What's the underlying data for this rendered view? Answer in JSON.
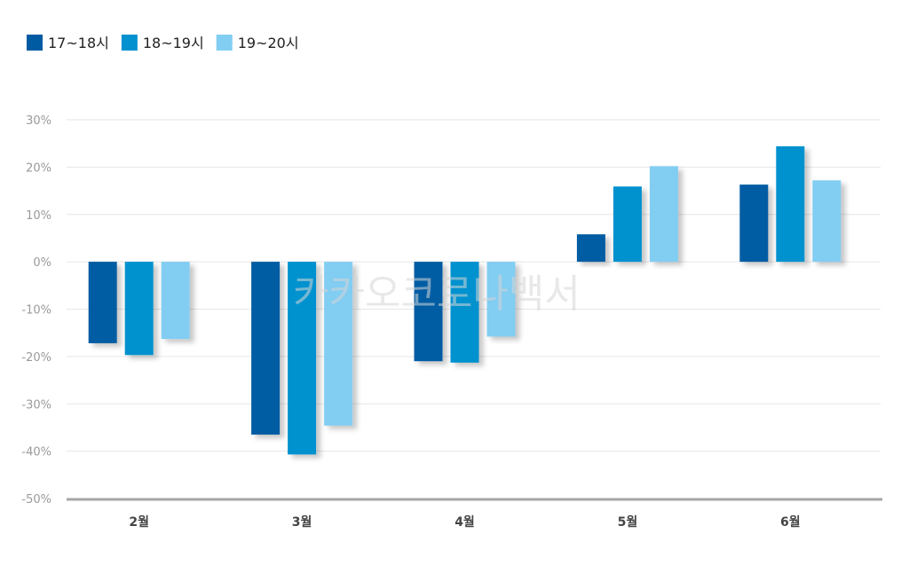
{
  "chart_data": {
    "type": "bar",
    "title": "",
    "xlabel": "",
    "ylabel": "",
    "categories": [
      "2월",
      "3월",
      "4월",
      "5월",
      "6월"
    ],
    "series": [
      {
        "name": "17~18시",
        "color": "#005ba3",
        "values": [
          -17.2,
          -36.5,
          -21.0,
          5.8,
          16.3
        ]
      },
      {
        "name": "18~19시",
        "color": "#0391cf",
        "values": [
          -19.7,
          -40.7,
          -21.3,
          15.9,
          24.4
        ]
      },
      {
        "name": "19~20시",
        "color": "#82cdf2",
        "values": [
          -16.3,
          -34.6,
          -15.8,
          20.2,
          17.2
        ]
      }
    ],
    "ylim": [
      -50,
      30
    ],
    "yticks": [
      30,
      20,
      10,
      0,
      -10,
      -20,
      -30,
      -40,
      -50
    ],
    "ytick_labels": [
      "30%",
      "20%",
      "10%",
      "0%",
      "-10%",
      "-20%",
      "-30%",
      "-40%",
      "-50%"
    ],
    "grid": true,
    "legend": "top-left",
    "watermark": "카카오코로나백서"
  }
}
